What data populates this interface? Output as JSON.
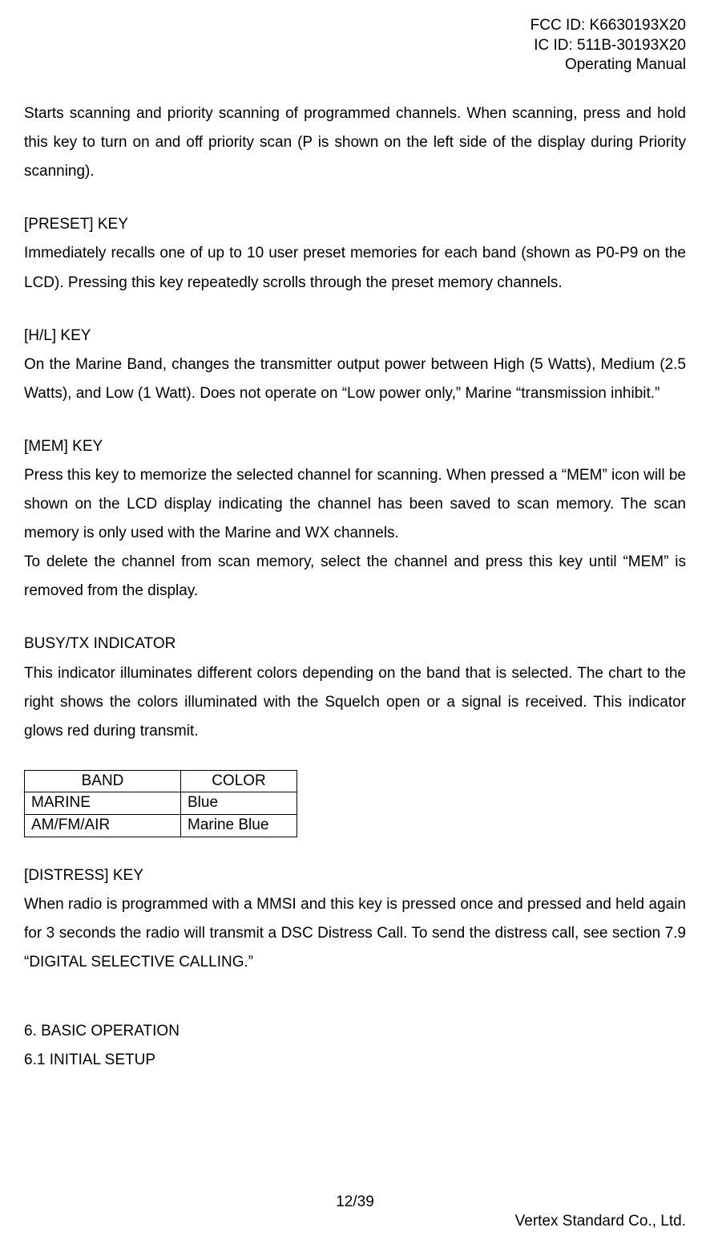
{
  "header": {
    "fcc_id": "FCC ID: K6630193X20",
    "ic_id": "IC ID: 511B-30193X20",
    "doc_type": "Operating Manual"
  },
  "intro_para": "Starts scanning and priority scanning of programmed channels. When scanning, press and hold this key to turn on and off priority scan (P is shown on the left side of the display during Priority scanning).",
  "preset": {
    "heading": "[PRESET] KEY",
    "text": "Immediately recalls one of up to 10 user preset memories for each band (shown as P0-P9 on the LCD). Pressing this key repeatedly scrolls through the preset memory channels."
  },
  "hl": {
    "heading": "[H/L] KEY",
    "text": "On the Marine Band, changes the transmitter output power between High (5 Watts), Medium (2.5 Watts), and Low (1 Watt). Does not operate on “Low power only,” Marine “transmission inhibit.”"
  },
  "mem": {
    "heading": "[MEM] KEY",
    "text1": "Press this key to memorize the selected channel for scanning. When pressed a “MEM” icon will be shown on the LCD display indicating the channel has been saved to scan memory. The scan memory is only used with the Marine and WX channels.",
    "text2": "To delete the channel from scan memory, select the channel and press this key until “MEM” is removed from the display."
  },
  "busytx": {
    "heading": "BUSY/TX INDICATOR",
    "text": "This indicator illuminates different colors depending on the band that is selected. The chart to the right shows the colors illuminated with the Squelch open or a signal is received. This indicator glows red during transmit."
  },
  "table": {
    "columns": [
      "BAND",
      "COLOR"
    ],
    "rows": [
      [
        "MARINE",
        "Blue"
      ],
      [
        "AM/FM/AIR",
        "Marine Blue"
      ]
    ]
  },
  "distress": {
    "heading": "[DISTRESS] KEY",
    "text": "When radio is programmed with a MMSI and this key is pressed once and pressed and held again for 3 seconds the radio will transmit a DSC Distress Call. To send the distress call, see section 7.9 “DIGITAL SELECTIVE CALLING.”"
  },
  "section6": {
    "heading": "6. BASIC OPERATION",
    "sub": "6.1 INITIAL SETUP"
  },
  "footer": {
    "page": "12/39",
    "company": "Vertex Standard Co., Ltd."
  }
}
